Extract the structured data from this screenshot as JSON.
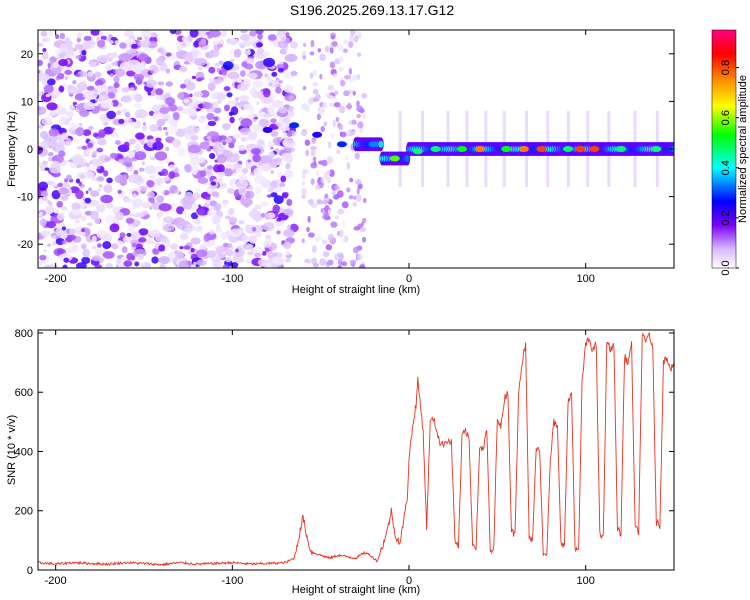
{
  "title": "S196.2025.269.13.17.G12",
  "chart_data": [
    {
      "type": "heatmap",
      "xlabel": "Height of straight line (km)",
      "ylabel": "Frequency (Hz)",
      "xlim": [
        -210,
        150
      ],
      "ylim": [
        -25,
        25
      ],
      "xticks": [
        -200,
        -100,
        0,
        100
      ],
      "yticks": [
        -20,
        -10,
        0,
        10,
        20
      ],
      "colorbar": {
        "label": "Normalized spectral amplitude",
        "range": [
          0,
          0.95
        ],
        "ticks": [
          "0.0",
          "0.2",
          "0.4",
          "0.6",
          "0.8"
        ],
        "tick_values": [
          0.0,
          0.2,
          0.4,
          0.6,
          0.8
        ],
        "colors": [
          "#ffffff",
          "#d8b8ff",
          "#7a00ff",
          "#0000ff",
          "#00ffff",
          "#00ff00",
          "#ffff00",
          "#ff8000",
          "#ff0000",
          "#ff0080"
        ]
      },
      "ridge": [
        {
          "x": -80,
          "y": 4,
          "a": 0.25
        },
        {
          "x": -65,
          "y": 5,
          "a": 0.3
        },
        {
          "x": -52,
          "y": 3,
          "a": 0.25
        },
        {
          "x": -38,
          "y": 1,
          "a": 0.3
        },
        {
          "x": -20,
          "y": 1,
          "a": 0.35
        },
        {
          "x": -8,
          "y": -2,
          "a": 0.6
        },
        {
          "x": 5,
          "y": -0.5,
          "a": 0.5
        },
        {
          "x": 15,
          "y": 0,
          "a": 0.5
        },
        {
          "x": 30,
          "y": 0,
          "a": 0.55
        },
        {
          "x": 40,
          "y": 0,
          "a": 0.8
        },
        {
          "x": 55,
          "y": 0,
          "a": 0.55
        },
        {
          "x": 65,
          "y": 0,
          "a": 0.8
        },
        {
          "x": 75,
          "y": 0,
          "a": 0.85
        },
        {
          "x": 90,
          "y": 0,
          "a": 0.5
        },
        {
          "x": 97,
          "y": 0,
          "a": 0.85
        },
        {
          "x": 105,
          "y": 0,
          "a": 0.85
        },
        {
          "x": 120,
          "y": 0,
          "a": 0.5
        },
        {
          "x": 140,
          "y": 0,
          "a": 0.5
        }
      ]
    },
    {
      "type": "line",
      "xlabel": "Height of straight line (km)",
      "ylabel": "SNR (10 * v/v)",
      "xlim": [
        -210,
        150
      ],
      "ylim": [
        0,
        810
      ],
      "xticks": [
        -200,
        -100,
        0,
        100
      ],
      "yticks": [
        0,
        200,
        400,
        600,
        800
      ],
      "series": [
        {
          "color": "#e8321e",
          "x": [
            -210,
            -200,
            -190,
            -180,
            -170,
            -160,
            -150,
            -140,
            -130,
            -120,
            -110,
            -100,
            -90,
            -80,
            -70,
            -65,
            -62,
            -60,
            -57,
            -55,
            -50,
            -45,
            -40,
            -35,
            -30,
            -25,
            -22,
            -20,
            -18,
            -15,
            -12,
            -10,
            -8,
            -5,
            -3,
            -1,
            0,
            2,
            4,
            5,
            8,
            10,
            12,
            14,
            18,
            22,
            24,
            26,
            28,
            30,
            32,
            34,
            36,
            38,
            40,
            42,
            44,
            46,
            48,
            50,
            52,
            54,
            56,
            58,
            60,
            62,
            64,
            66,
            68,
            70,
            72,
            74,
            76,
            78,
            80,
            82,
            84,
            86,
            88,
            90,
            92,
            94,
            96,
            98,
            100,
            102,
            104,
            106,
            108,
            110,
            112,
            114,
            116,
            118,
            120,
            122,
            124,
            126,
            128,
            130,
            132,
            134,
            136,
            138,
            140,
            142,
            144,
            146,
            148,
            150
          ],
          "y": [
            25,
            20,
            25,
            22,
            20,
            25,
            22,
            18,
            25,
            20,
            22,
            25,
            20,
            22,
            25,
            40,
            120,
            180,
            90,
            60,
            50,
            40,
            50,
            45,
            40,
            60,
            50,
            40,
            30,
            80,
            140,
            200,
            120,
            90,
            170,
            240,
            380,
            480,
            560,
            640,
            470,
            140,
            500,
            510,
            420,
            440,
            430,
            100,
            80,
            450,
            470,
            440,
            90,
            80,
            420,
            400,
            480,
            60,
            70,
            520,
            480,
            580,
            600,
            130,
            120,
            600,
            700,
            760,
            110,
            100,
            420,
            400,
            60,
            50,
            370,
            500,
            480,
            100,
            80,
            560,
            600,
            70,
            60,
            640,
            760,
            780,
            740,
            760,
            120,
            110,
            780,
            740,
            760,
            140,
            120,
            720,
            700,
            760,
            140,
            130,
            790,
            770,
            800,
            740,
            160,
            150,
            700,
            720,
            680,
            700
          ]
        }
      ]
    }
  ]
}
